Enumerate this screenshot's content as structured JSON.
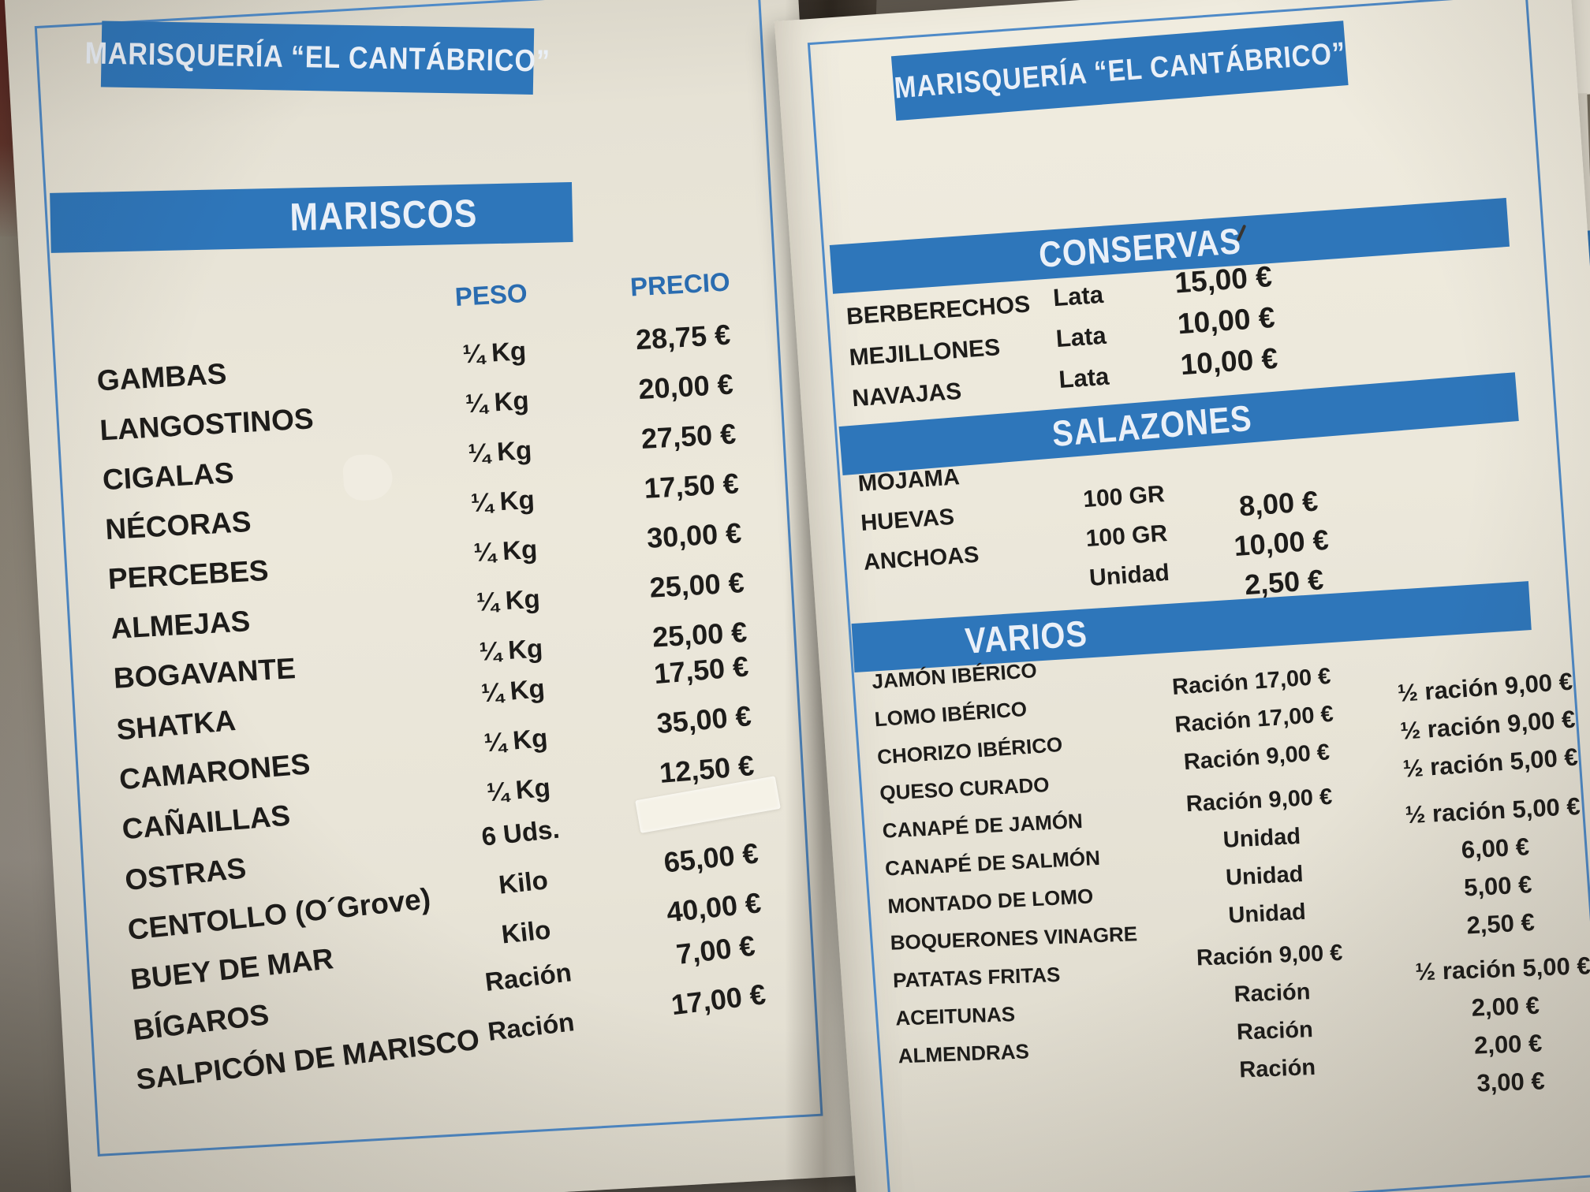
{
  "colors": {
    "band_blue": "#2e76ba",
    "label_blue": "#2a6cb0",
    "border_blue": "#4e8ac8",
    "paper": "#e9e5d8",
    "ink": "#1d1c1a"
  },
  "left_page": {
    "header": "MARISQUERÍA “EL CANTÁBRICO”",
    "mariscos": {
      "title": "MARISCOS",
      "col_weight": "PESO",
      "col_price": "PRECIO",
      "items": [
        {
          "name": "GAMBAS",
          "weight": "¼ Kg",
          "price": "28,75 €"
        },
        {
          "name": "LANGOSTINOS",
          "weight": "¼ Kg",
          "price": "20,00 €"
        },
        {
          "name": "CIGALAS",
          "weight": "¼ Kg",
          "price": "27,50 €"
        },
        {
          "name": "NÉCORAS",
          "weight": "¼ Kg",
          "price": "17,50 €"
        },
        {
          "name": "PERCEBES",
          "weight": "¼ Kg",
          "price": "30,00 €"
        },
        {
          "name": "ALMEJAS",
          "weight": "¼ Kg",
          "price": "25,00 €"
        },
        {
          "name": "BOGAVANTE",
          "weight": "¼ Kg",
          "price": "25,00 €"
        },
        {
          "name": "SHATKA",
          "weight": "¼ Kg",
          "price": "17,50 €"
        },
        {
          "name": "CAMARONES",
          "weight": "¼ Kg",
          "price": "35,00 €"
        },
        {
          "name": "CAÑAILLAS",
          "weight": "¼ Kg",
          "price": "12,50 €"
        },
        {
          "name": "OSTRAS",
          "weight": "6 Uds.",
          "price": ""
        },
        {
          "name": "CENTOLLO (O´Grove)",
          "weight": "Kilo",
          "price": "65,00 €"
        },
        {
          "name": "BUEY DE MAR",
          "weight": "Kilo",
          "price": "40,00 €"
        },
        {
          "name": "BÍGAROS",
          "weight": "Ración",
          "price": "7,00 €"
        },
        {
          "name": "SALPICÓN DE MARISCO",
          "weight": "Ración",
          "price": "17,00 €"
        }
      ]
    }
  },
  "right_page": {
    "header": "MARISQUERÍA “EL CANTÁBRICO”",
    "conservas": {
      "title": "CONSERVAS",
      "items": [
        {
          "name": "BERBERECHOS",
          "unit": "Lata",
          "price": "15,00 €"
        },
        {
          "name": "MEJILLONES",
          "unit": "Lata",
          "price": "10,00 €"
        },
        {
          "name": "NAVAJAS",
          "unit": "Lata",
          "price": "10,00 €"
        }
      ]
    },
    "salazones": {
      "title": "SALAZONES",
      "items": [
        {
          "name": "MOJAMA",
          "unit": "100 GR",
          "price": "8,00 €"
        },
        {
          "name": "HUEVAS",
          "unit": "100 GR",
          "price": "10,00 €"
        },
        {
          "name": "ANCHOAS",
          "unit": "Unidad",
          "price": "2,50 €"
        }
      ]
    },
    "varios": {
      "title": "VARIOS",
      "items": [
        {
          "name": "JAMÓN IBÉRICO",
          "portion": "Ración 17,00 €",
          "half": "½ ración 9,00 €"
        },
        {
          "name": "LOMO IBÉRICO",
          "portion": "Ración 17,00 €",
          "half": "½ ración 9,00 €"
        },
        {
          "name": "CHORIZO IBÉRICO",
          "portion": "Ración 9,00 €",
          "half": "½ ración 5,00 €"
        },
        {
          "name": "QUESO CURADO",
          "portion": "Ración 9,00 €",
          "half": "½ ración 5,00 €"
        },
        {
          "name": "CANAPÉ DE JAMÓN",
          "portion": "Unidad",
          "half": "6,00 €"
        },
        {
          "name": "CANAPÉ DE SALMÓN",
          "portion": "Unidad",
          "half": "5,00 €"
        },
        {
          "name": "MONTADO DE LOMO",
          "portion": "Unidad",
          "half": "2,50 €"
        },
        {
          "name": "BOQUERONES VINAGRE",
          "portion": "Ración 9,00 €",
          "half": "½ ración 5,00 €"
        },
        {
          "name": "PATATAS FRITAS",
          "portion": "Ración",
          "half": "2,00 €"
        },
        {
          "name": "ACEITUNAS",
          "portion": "Ración",
          "half": "2,00 €"
        },
        {
          "name": "ALMENDRAS",
          "portion": "Ración",
          "half": "3,00 €"
        }
      ]
    }
  }
}
